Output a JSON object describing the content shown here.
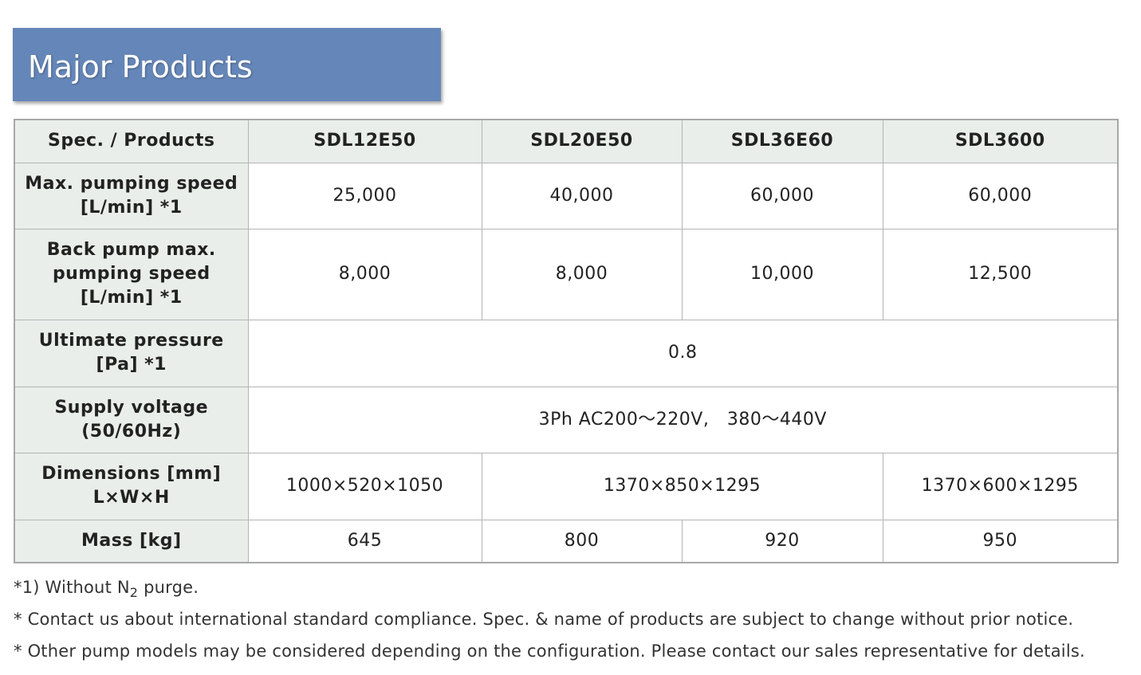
{
  "header": {
    "title": "Major Products"
  },
  "table": {
    "columns": [
      "Spec. / Products",
      "SDL12E50",
      "SDL20E50",
      "SDL36E60",
      "SDL3600"
    ],
    "rows": [
      {
        "label": [
          "Max. pumping speed",
          "[L/min] *1"
        ],
        "cells": [
          "25,000",
          "40,000",
          "60,000",
          "60,000"
        ]
      },
      {
        "label": [
          "Back pump max.",
          "pumping speed",
          "[L/min] *1"
        ],
        "cells": [
          "8,000",
          "8,000",
          "10,000",
          "12,500"
        ]
      },
      {
        "label": [
          "Ultimate pressure",
          "[Pa] *1"
        ],
        "cells": [
          "0.8"
        ]
      },
      {
        "label": [
          "Supply voltage",
          "(50/60Hz)"
        ],
        "cells": [
          "3Ph AC200～220V,　380～440V"
        ]
      },
      {
        "label": [
          "Dimensions [mm]",
          "L×W×H"
        ],
        "cells": [
          "1000×520×1050",
          "1370×850×1295",
          "1370×600×1295"
        ]
      },
      {
        "label": [
          "Mass [kg]"
        ],
        "cells": [
          "645",
          "800",
          "920",
          "950"
        ]
      }
    ]
  },
  "notes": [
    {
      "parts": [
        "*1) Without N",
        "2",
        " purge."
      ]
    },
    {
      "parts": [
        "* Contact us about international standard compliance. Spec. & name of products are subject to change without prior notice."
      ]
    },
    {
      "parts": [
        "* Other pump models may be considered depending on the configuration. Please contact our sales representative for details."
      ]
    }
  ]
}
